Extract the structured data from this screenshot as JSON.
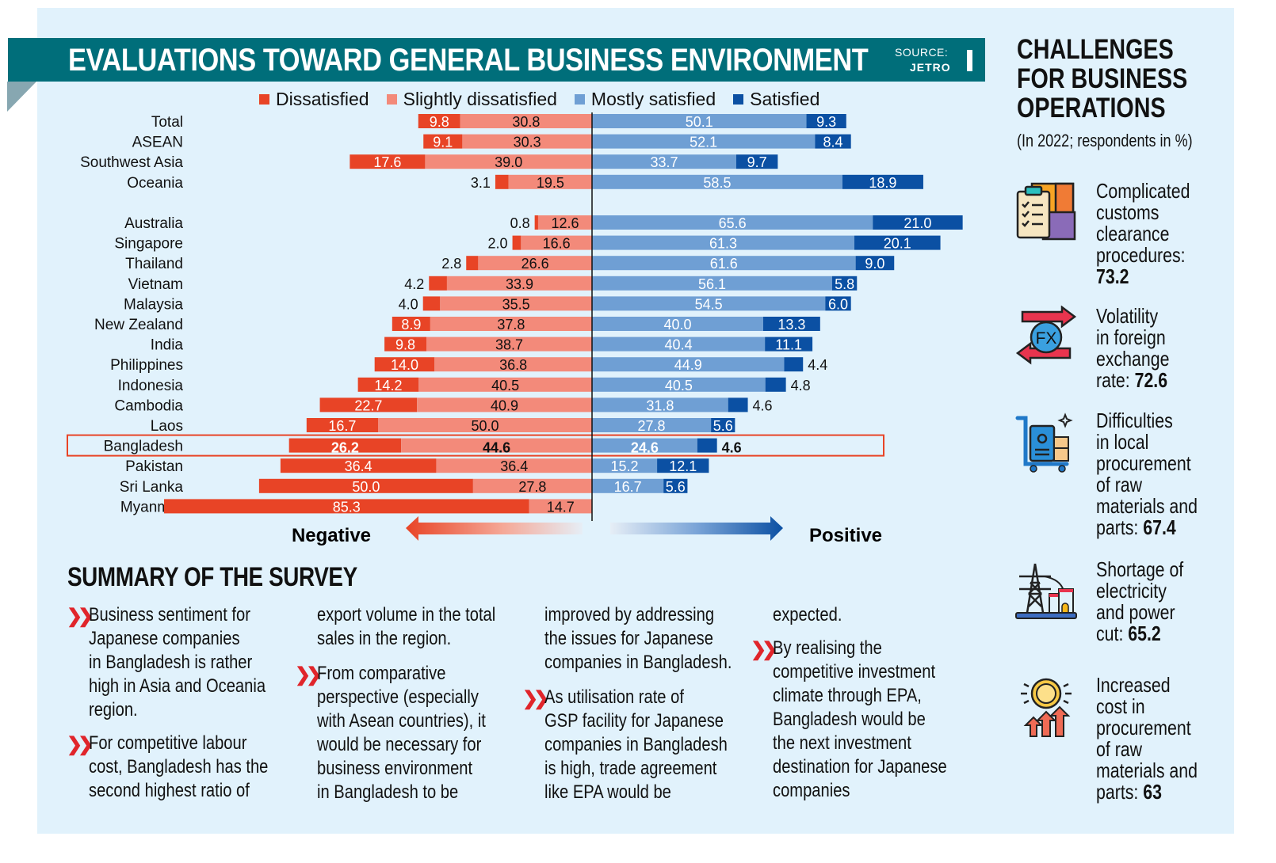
{
  "header": {
    "title": "EVALUATIONS TOWARD GENERAL BUSINESS ENVIRONMENT",
    "source_label": "SOURCE:",
    "source_value": "JETRO"
  },
  "legend": [
    {
      "label": "Dissatisfied",
      "color": "#e84426"
    },
    {
      "label": "Slightly dissatisfied",
      "color": "#f38a7a"
    },
    {
      "label": "Mostly satisfied",
      "color": "#6f9fd4"
    },
    {
      "label": "Satisfied",
      "color": "#0b50a3"
    }
  ],
  "direction": {
    "negative": "Negative",
    "positive": "Positive"
  },
  "chart_data": {
    "type": "bar",
    "subtype": "diverging-stacked-horizontal",
    "title": "EVALUATIONS TOWARD GENERAL BUSINESS ENVIRONMENT",
    "xlabel": "",
    "ylabel": "",
    "unit": "%",
    "highlight": "Bangladesh",
    "categories": [
      "Total",
      "ASEAN",
      "Southwest Asia",
      "Oceania",
      "",
      "Australia",
      "Singapore",
      "Thailand",
      "Vietnam",
      "Malaysia",
      "New Zealand",
      "India",
      "Philippines",
      "Indonesia",
      "Cambodia",
      "Laos",
      "Bangladesh",
      "Pakistan",
      "Sri Lanka",
      "Myanmar"
    ],
    "series": [
      {
        "name": "Dissatisfied",
        "side": "negative",
        "color": "#e84426",
        "values": [
          9.8,
          9.1,
          17.6,
          3.1,
          null,
          0.8,
          2.0,
          2.8,
          4.2,
          4.0,
          8.9,
          9.8,
          14.0,
          14.2,
          22.7,
          16.7,
          26.2,
          36.4,
          50.0,
          85.3
        ]
      },
      {
        "name": "Slightly dissatisfied",
        "side": "negative",
        "color": "#f38a7a",
        "values": [
          30.8,
          30.3,
          39.0,
          19.5,
          null,
          12.6,
          16.6,
          26.6,
          33.9,
          35.5,
          37.8,
          38.7,
          36.8,
          40.5,
          40.9,
          50.0,
          44.6,
          36.4,
          27.8,
          14.7
        ]
      },
      {
        "name": "Mostly satisfied",
        "side": "positive",
        "color": "#6f9fd4",
        "values": [
          50.1,
          52.1,
          33.7,
          58.5,
          null,
          65.6,
          61.3,
          61.6,
          56.1,
          54.5,
          40.0,
          40.4,
          44.9,
          40.5,
          31.8,
          27.8,
          24.6,
          15.2,
          16.7,
          null
        ]
      },
      {
        "name": "Satisfied",
        "side": "positive",
        "color": "#0b50a3",
        "values": [
          9.3,
          8.4,
          9.7,
          18.9,
          null,
          21.0,
          20.1,
          9.0,
          5.8,
          6.0,
          13.3,
          11.1,
          4.4,
          4.8,
          4.6,
          5.6,
          4.6,
          12.1,
          5.6,
          null
        ]
      }
    ],
    "grid": false,
    "legend_position": "top"
  },
  "summary": {
    "title": "SUMMARY OF THE SURVEY",
    "columns": [
      [
        {
          "bullet": true,
          "text": "Business sentiment for\nJapanese companies\nin Bangladesh is rather\nhigh in Asia and Oceania\nregion."
        },
        {
          "bullet": true,
          "text": "For competitive labour\ncost, Bangladesh has the\nsecond highest ratio of"
        }
      ],
      [
        {
          "bullet": false,
          "text": "export volume in the total\nsales in the region."
        },
        {
          "bullet": true,
          "text": "From comparative\nperspective (especially\nwith Asean countries), it\nwould be necessary for\nbusiness environment\nin Bangladesh to be"
        }
      ],
      [
        {
          "bullet": false,
          "text": "improved by addressing\nthe issues for Japanese\ncompanies in Bangladesh."
        },
        {
          "bullet": true,
          "text": "As utilisation rate of\nGSP facility for Japanese\ncompanies in Bangladesh\nis high, trade agreement\nlike EPA would be"
        }
      ],
      [
        {
          "bullet": false,
          "text": "expected."
        },
        {
          "bullet": true,
          "text": "By realising the\ncompetitive investment\nclimate through EPA,\nBangladesh would be\nthe next investment\ndestination for Japanese\ncompanies"
        }
      ]
    ]
  },
  "challenges": {
    "title_lines": [
      "CHALLENGES",
      "FOR BUSINESS",
      "OPERATIONS"
    ],
    "subtitle": "(In 2022; respondents in %)",
    "items": [
      {
        "icon": "customs-clipboard-icon",
        "text": "Complicated\ncustoms\nclearance\nprocedures:\n",
        "value": "73.2"
      },
      {
        "icon": "foreign-exchange-icon",
        "text": "Volatility\nin foreign\nexchange\nrate: ",
        "value": "72.6"
      },
      {
        "icon": "procurement-cart-icon",
        "text": "Difficulties\nin local\nprocurement\nof raw\nmaterials and\nparts: ",
        "value": "67.4"
      },
      {
        "icon": "power-tower-icon",
        "text": "Shortage of\nelectricity\nand power\ncut: ",
        "value": "65.2"
      },
      {
        "icon": "rising-cost-icon",
        "text": "Increased\ncost in\nprocurement\nof raw\nmaterials and\nparts: ",
        "value": "63"
      }
    ]
  }
}
